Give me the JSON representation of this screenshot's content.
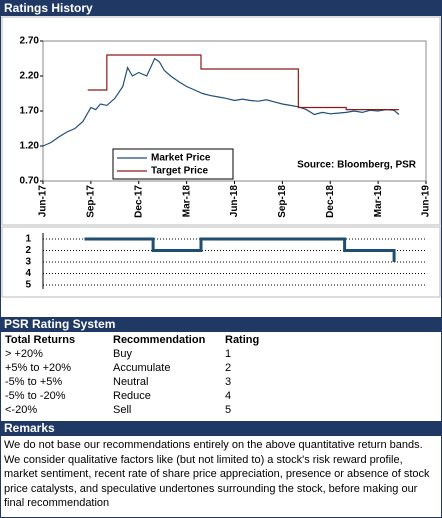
{
  "header": {
    "title": "Ratings History",
    "rating_system": "PSR Rating System",
    "remarks": "Remarks"
  },
  "chart_data": [
    {
      "type": "line",
      "xlim": [
        0,
        24
      ],
      "xticks": [
        {
          "value": 0,
          "label": "Jun-17"
        },
        {
          "value": 3,
          "label": "Sep-17"
        },
        {
          "value": 6,
          "label": "Dec-17"
        },
        {
          "value": 9,
          "label": "Mar-18"
        },
        {
          "value": 12,
          "label": "Jun-18"
        },
        {
          "value": 15,
          "label": "Sep-18"
        },
        {
          "value": 18,
          "label": "Dec-18"
        },
        {
          "value": 21,
          "label": "Mar-19"
        },
        {
          "value": 24,
          "label": "Jun-19"
        }
      ],
      "ylim": [
        0.7,
        2.7
      ],
      "yticks": [
        {
          "value": 0.7,
          "label": "0.70"
        },
        {
          "value": 1.2,
          "label": "1.20"
        },
        {
          "value": 1.7,
          "label": "1.70"
        },
        {
          "value": 2.2,
          "label": "2.20"
        },
        {
          "value": 2.7,
          "label": "2.70"
        }
      ],
      "annotation": "Source: Bloomberg, PSR",
      "series": [
        {
          "name": "Market Price",
          "color": "#1f4e79",
          "x": [
            0,
            0.5,
            1,
            1.5,
            2,
            2.5,
            3,
            3.3,
            3.6,
            4,
            4.5,
            5,
            5.3,
            5.6,
            6,
            6.5,
            7,
            7.3,
            7.6,
            8,
            8.5,
            9,
            9.5,
            10,
            10.5,
            11,
            11.5,
            12,
            12.5,
            13,
            13.5,
            14,
            14.5,
            15,
            15.5,
            16,
            16.5,
            17,
            17.5,
            18,
            18.5,
            19,
            19.5,
            20,
            20.5,
            21,
            21.5,
            22,
            22.3
          ],
          "values": [
            1.2,
            1.25,
            1.33,
            1.4,
            1.45,
            1.55,
            1.75,
            1.72,
            1.8,
            1.78,
            1.88,
            2.05,
            2.32,
            2.2,
            2.25,
            2.2,
            2.45,
            2.4,
            2.28,
            2.2,
            2.12,
            2.05,
            2.0,
            1.95,
            1.92,
            1.9,
            1.88,
            1.85,
            1.87,
            1.85,
            1.84,
            1.86,
            1.83,
            1.8,
            1.78,
            1.76,
            1.72,
            1.65,
            1.68,
            1.66,
            1.67,
            1.68,
            1.7,
            1.68,
            1.71,
            1.7,
            1.72,
            1.71,
            1.65
          ]
        },
        {
          "name": "Target Price",
          "color": "#8b1a1a",
          "x": [
            2.8,
            4,
            4,
            9.9,
            9.9,
            16,
            16,
            19,
            19,
            22.3
          ],
          "values": [
            2.0,
            2.0,
            2.5,
            2.5,
            2.3,
            2.3,
            1.75,
            1.75,
            1.72,
            1.72
          ]
        }
      ]
    },
    {
      "type": "line",
      "xlim": [
        0,
        24
      ],
      "ylim": [
        5,
        1
      ],
      "yticks": [
        1,
        2,
        3,
        4,
        5
      ],
      "grid": true,
      "series": [
        {
          "color": "#1f4e6e",
          "x": [
            2.6,
            6.9,
            6.9,
            9.9,
            9.9,
            18.9,
            18.9,
            22,
            22
          ],
          "values": [
            1,
            1,
            2,
            2,
            1,
            1,
            2,
            2,
            3
          ]
        }
      ]
    }
  ],
  "rating_table": {
    "columns": [
      "Total Returns",
      "Recommendation",
      "Rating"
    ],
    "rows": [
      [
        "> +20%",
        "Buy",
        "1"
      ],
      [
        "+5% to +20%",
        "Accumulate",
        "2"
      ],
      [
        "-5% to +5%",
        "Neutral",
        "3"
      ],
      [
        "-5% to -20%",
        "Reduce",
        "4"
      ],
      [
        "<-20%",
        "Sell",
        "5"
      ]
    ]
  },
  "remarks": "We do not base our recommendations entirely on the  above quantitative return bands.  We consider qualitative factors like (but not limited to) a stock's risk reward profile, market sentiment, recent rate of share price appreciation, presence or absence of stock price catalysts, and speculative undertones surrounding the stock, before making our final recommendation"
}
